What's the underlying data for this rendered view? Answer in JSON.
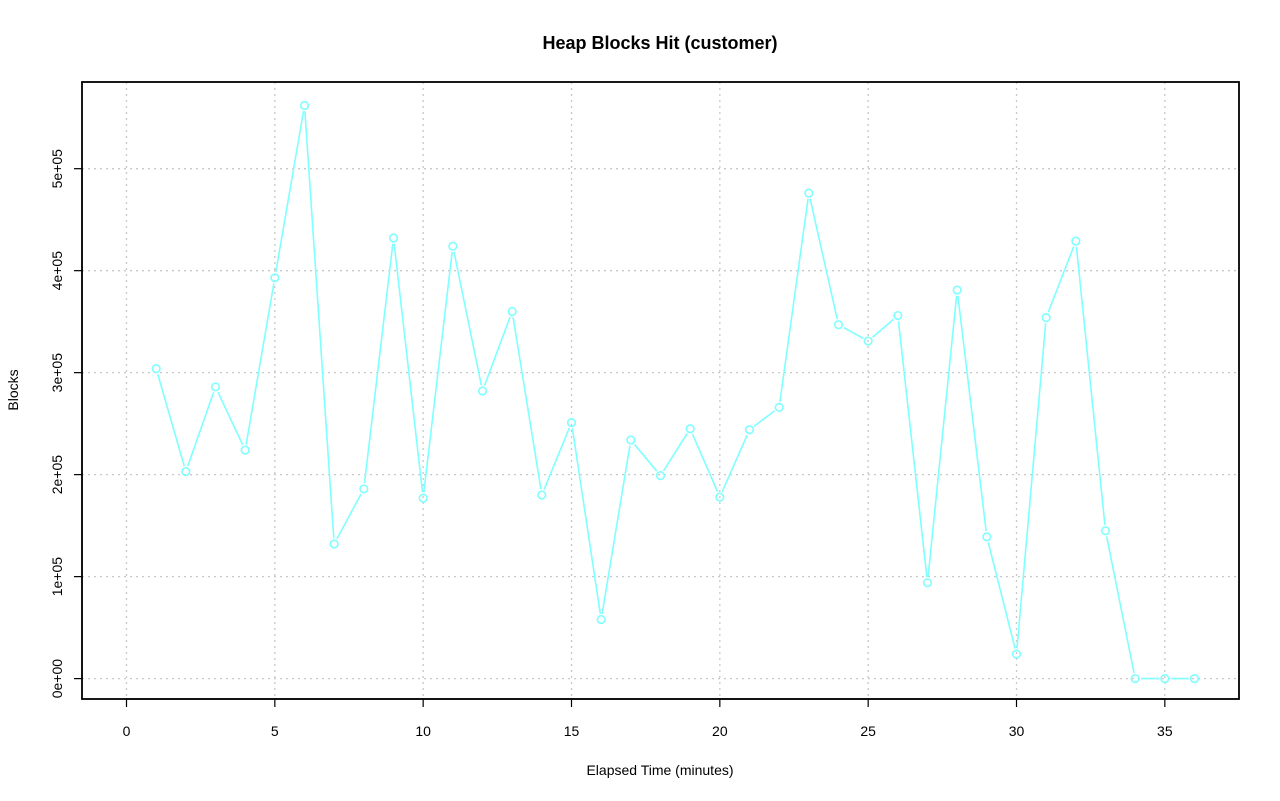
{
  "chart_data": {
    "type": "line",
    "title": "Heap Blocks Hit (customer)",
    "xlabel": "Elapsed Time (minutes)",
    "ylabel": "Blocks",
    "xlim": [
      -1.5,
      37.5
    ],
    "ylim": [
      -20000,
      585000
    ],
    "x_ticks": [
      0,
      5,
      10,
      15,
      20,
      25,
      30,
      35
    ],
    "x_tick_labels": [
      "0",
      "5",
      "10",
      "15",
      "20",
      "25",
      "30",
      "35"
    ],
    "y_ticks": [
      0,
      100000,
      200000,
      300000,
      400000,
      500000
    ],
    "y_tick_labels": [
      "0e+00",
      "1e+05",
      "2e+05",
      "3e+05",
      "4e+05",
      "5e+05"
    ],
    "grid": true,
    "legend": "none",
    "line_color": "#7fffff",
    "series": [
      {
        "x": [
          1,
          2,
          3,
          4,
          5,
          6,
          7,
          8,
          9,
          10,
          11,
          12,
          13,
          14,
          15,
          16,
          17,
          18,
          19,
          20,
          21,
          22,
          23,
          24,
          25,
          26,
          27,
          28,
          29,
          30,
          31,
          32,
          33,
          34,
          35,
          36
        ],
        "values": [
          304000,
          203000,
          286000,
          224000,
          393000,
          562000,
          132000,
          186000,
          432000,
          177000,
          424000,
          282000,
          360000,
          180000,
          251000,
          58000,
          234000,
          199000,
          245000,
          178000,
          244000,
          266000,
          476000,
          347000,
          331000,
          356000,
          94000,
          381000,
          139000,
          24000,
          354000,
          429000,
          145000,
          0,
          0,
          0
        ]
      }
    ]
  }
}
